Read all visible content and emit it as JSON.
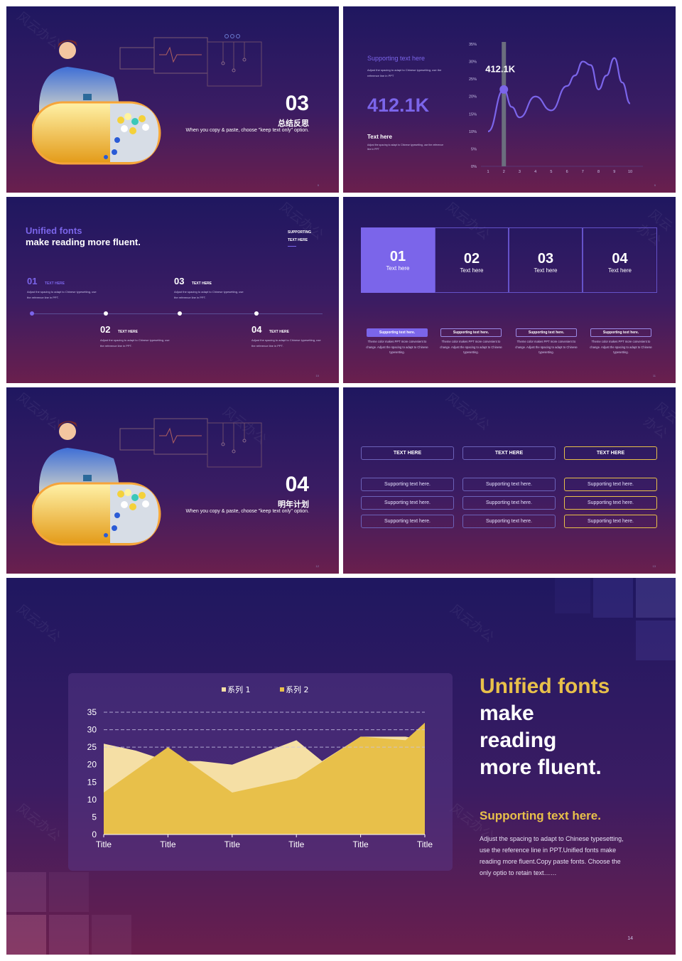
{
  "slide1": {
    "number": "03",
    "title": "总结反思",
    "subtitle": "When you copy & paste, choose \"keep text only\" option.",
    "page": "9"
  },
  "slide2": {
    "heading": "Supporting text here",
    "desc": "Adjust the spacing to adapt to Chinese typesetting, use the reference line in PPT",
    "big_value": "412.1K",
    "text_label": "Text here",
    "small_desc": "Adjust the spacing to adapt to Chinese typesetting, use the reference line in PPT",
    "page": "9",
    "chart_data": {
      "type": "line",
      "x": [
        1,
        2,
        3,
        4,
        5,
        6,
        7,
        8,
        9,
        10
      ],
      "y_ticks": [
        "0%",
        "5%",
        "10%",
        "15%",
        "20%",
        "25%",
        "30%",
        "35%"
      ],
      "ylim": [
        0,
        35
      ],
      "highlight_x": 2,
      "highlight_label": "412.1K",
      "curve_points": [
        [
          1,
          10
        ],
        [
          2,
          22
        ],
        [
          2.5,
          17
        ],
        [
          3,
          14
        ],
        [
          4,
          20
        ],
        [
          5,
          16
        ],
        [
          6,
          23
        ],
        [
          6.5,
          26
        ],
        [
          7,
          30
        ],
        [
          7.5,
          29
        ],
        [
          8,
          22
        ],
        [
          8.5,
          26
        ],
        [
          9,
          31
        ],
        [
          9.5,
          24
        ],
        [
          10,
          18
        ]
      ],
      "color": "#7b65ea"
    }
  },
  "slide3": {
    "title_accent": "Unified fonts",
    "title_main": "make reading more fluent.",
    "side_label_1": "SUPPORTING",
    "side_label_2": "TEXT HERE",
    "page": "10",
    "items": [
      {
        "num": "01",
        "label": "TEXT HERE",
        "desc": "Adjust the spacing to adapt to Chinese typesetting, use the reference line in PPT."
      },
      {
        "num": "02",
        "label": "TEXT HERE",
        "desc": "Adjust the spacing to adapt to Chinese typesetting, use the reference line in PPT."
      },
      {
        "num": "03",
        "label": "TEXT HERE",
        "desc": "Adjust the spacing to adapt to Chinese typesetting, use the reference line in PPT."
      },
      {
        "num": "04",
        "label": "TEXT HERE",
        "desc": "Adjust the spacing to adapt to Chinese typesetting, use the reference line in PPT."
      }
    ]
  },
  "slide4": {
    "page": "11",
    "boxes": [
      {
        "num": "01",
        "text": "Text here"
      },
      {
        "num": "02",
        "text": "Text here"
      },
      {
        "num": "03",
        "text": "Text here"
      },
      {
        "num": "04",
        "text": "Text here"
      }
    ],
    "tags": [
      "Supporting text here.",
      "Supporting text here.",
      "Supporting text here.",
      "Supporting text here."
    ],
    "desc": "Theme color makes PPT more convenient to change. Adjust the spacing to adapt to Chinese typesetting."
  },
  "slide5": {
    "number": "04",
    "title": "明年计划",
    "subtitle": "When you copy & paste, choose \"keep text only\" option.",
    "page": "12"
  },
  "slide6": {
    "page": "13",
    "headers": [
      "TEXT HERE",
      "TEXT HERE",
      "TEXT HERE"
    ],
    "cell": "Supporting text here."
  },
  "slide7": {
    "title_accent": "Unified fonts",
    "title_l2": "make",
    "title_l3": "reading",
    "title_l4": "more fluent.",
    "supporting": "Supporting text here.",
    "body": "Adjust the spacing to adapt to Chinese typesetting, use the reference line in PPT.Unified fonts make reading more fluent.Copy paste fonts. Choose the only optio to retain text……",
    "page": "14",
    "accent_color": "#e8c04a",
    "chart_data": {
      "type": "area",
      "categories": [
        "Title",
        "Title",
        "Title",
        "Title",
        "Title",
        "Title"
      ],
      "x_positions": [
        0,
        1,
        2,
        3,
        4,
        5
      ],
      "series": [
        {
          "name": "系列 1",
          "color": "#f5dfa5",
          "points": [
            [
              0,
              26
            ],
            [
              0.5,
              24
            ],
            [
              1,
              21
            ],
            [
              1.5,
              21
            ],
            [
              2,
              20
            ],
            [
              3,
              27
            ],
            [
              3.4,
              21
            ],
            [
              4,
              28
            ],
            [
              4.7,
              28
            ],
            [
              5,
              27
            ]
          ]
        },
        {
          "name": "系列 2",
          "color": "#e8c04a",
          "points": [
            [
              0,
              12
            ],
            [
              1,
              25
            ],
            [
              2,
              12
            ],
            [
              3,
              16
            ],
            [
              4,
              28
            ],
            [
              4.7,
              27
            ],
            [
              5,
              32
            ]
          ]
        }
      ],
      "y_ticks": [
        "0",
        "5",
        "10",
        "15",
        "20",
        "25",
        "30",
        "35"
      ],
      "ylim": [
        0,
        35
      ],
      "grid": "dashed at 25, 30, 35",
      "legend": "top"
    }
  },
  "watermark": "风云办公"
}
